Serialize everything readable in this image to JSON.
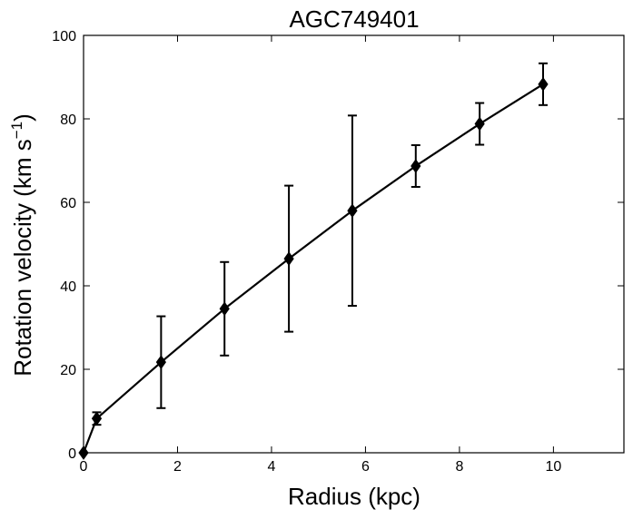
{
  "chart_data": {
    "type": "line",
    "title": "AGC749401",
    "xlabel": "Radius (kpc)",
    "ylabel": "Rotation velocity (km s",
    "ylabel_sup": "−1",
    "ylabel_close": ")",
    "xlim": [
      0,
      11.5
    ],
    "ylim": [
      0,
      100
    ],
    "xticks": [
      0,
      2,
      4,
      6,
      8,
      10
    ],
    "yticks": [
      0,
      20,
      40,
      60,
      80,
      100
    ],
    "xtick_labels": [
      "0",
      "2",
      "4",
      "6",
      "8",
      "10"
    ],
    "ytick_labels": [
      "0",
      "20",
      "40",
      "60",
      "80",
      "100"
    ],
    "grid": false,
    "series": [
      {
        "line_color": "#000000",
        "marker": "diamond",
        "points": [
          {
            "x": 0.0,
            "y": 0.0,
            "err": 0
          },
          {
            "x": 0.28,
            "y": 8.2,
            "err": 1.5
          },
          {
            "x": 1.65,
            "y": 21.7,
            "err": 11.0
          },
          {
            "x": 3.0,
            "y": 34.5,
            "err": 11.2
          },
          {
            "x": 4.37,
            "y": 46.5,
            "err": 17.5
          },
          {
            "x": 5.72,
            "y": 58.0,
            "err": 22.8
          },
          {
            "x": 7.07,
            "y": 68.7,
            "err": 5.0
          },
          {
            "x": 8.43,
            "y": 78.8,
            "err": 5.0
          },
          {
            "x": 9.78,
            "y": 88.3,
            "err": 5.0
          }
        ]
      }
    ]
  }
}
